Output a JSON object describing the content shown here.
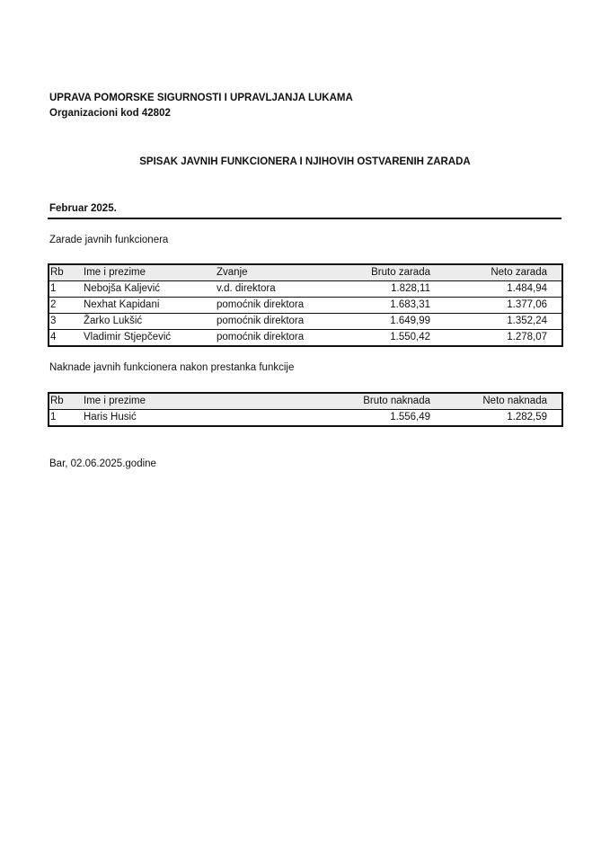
{
  "header": {
    "org": "UPRAVA POMORSKE SIGURNOSTI I UPRAVLJANJA LUKAMA",
    "code": "Organizacioni kod 42802"
  },
  "title": "SPISAK JAVNIH FUNKCIONERA I NJIHOVIH OSTVARENIH ZARADA",
  "period": "Februar 2025.",
  "salaries": {
    "caption": "Zarade javnih funkcionera",
    "columns": [
      "Rb",
      "Ime i prezime",
      "Zvanje",
      "Bruto zarada",
      "Neto zarada"
    ],
    "rows": [
      [
        "1",
        "Nebojša Kaljević",
        "v.d. direktora",
        "1.828,11",
        "1.484,94"
      ],
      [
        "2",
        "Nexhat Kapidani",
        "pomoćnik direktora",
        "1.683,31",
        "1.377,06"
      ],
      [
        "3",
        "Žarko Lukšić",
        "pomoćnik direktora",
        "1.649,99",
        "1.352,24"
      ],
      [
        "4",
        "Vladimir Stjepčević",
        "pomoćnik direktora",
        "1.550,42",
        "1.278,07"
      ]
    ]
  },
  "compensation": {
    "caption": "Naknade javnih funkcionera nakon prestanka funkcije",
    "columns": [
      "Rb",
      "Ime i prezime",
      "Bruto naknada",
      "Neto naknada"
    ],
    "rows": [
      [
        "1",
        "Haris Husić",
        "1.556,49",
        "1.282,59"
      ]
    ]
  },
  "footer": "Bar, 02.06.2025.godine"
}
